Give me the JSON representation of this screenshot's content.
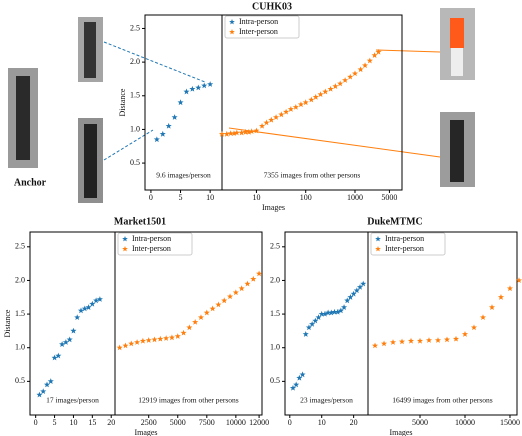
{
  "chart_data": [
    {
      "type": "scatter",
      "title": "CUHK03",
      "ylabel": "Distance",
      "xlabel": "Images",
      "ylim": [
        0.1,
        2.7
      ],
      "yticks": [
        {
          "value": 0.5,
          "label": "0.5"
        },
        {
          "value": 1,
          "label": "1.0"
        },
        {
          "value": 1.5,
          "label": "1.5"
        },
        {
          "value": 2,
          "label": "2.0"
        },
        {
          "value": 2.5,
          "label": "2.5"
        }
      ],
      "panels": [
        {
          "xlim": [
            -1,
            12
          ],
          "xticks": [
            0,
            5,
            10
          ],
          "annotation": "9.6 images/person"
        },
        {
          "xlim": [
            2,
            9000
          ],
          "log": true,
          "xticks": [
            10,
            100,
            1000,
            5000
          ],
          "annotation": "7355 images from other persons"
        }
      ],
      "legend": "upper left",
      "series": [
        {
          "name": "Intra-person",
          "color": "#1f77b4",
          "x": [
            1,
            2,
            3,
            4,
            5,
            6,
            7,
            8,
            9,
            10
          ],
          "values": [
            0.85,
            0.93,
            1.05,
            1.18,
            1.4,
            1.56,
            1.6,
            1.62,
            1.65,
            1.67
          ]
        },
        {
          "name": "Inter-person",
          "color": "#ff7f0e",
          "x": [
            2,
            2.5,
            3,
            3.5,
            4,
            5,
            6,
            7,
            8,
            10,
            13,
            16,
            20,
            25,
            32,
            40,
            50,
            63,
            80,
            100,
            130,
            160,
            200,
            250,
            320,
            400,
            500,
            630,
            800,
            1000,
            1300,
            1600,
            2000,
            2500,
            3000
          ],
          "values": [
            0.93,
            0.93,
            0.94,
            0.94,
            0.95,
            0.95,
            0.96,
            0.96,
            0.97,
            0.98,
            1.05,
            1.1,
            1.14,
            1.18,
            1.22,
            1.26,
            1.3,
            1.33,
            1.37,
            1.4,
            1.44,
            1.48,
            1.52,
            1.56,
            1.6,
            1.64,
            1.68,
            1.73,
            1.78,
            1.83,
            1.89,
            1.95,
            2.02,
            2.1,
            2.15
          ]
        }
      ]
    },
    {
      "type": "scatter",
      "title": "Market1501",
      "ylabel": "Distance",
      "xlabel": "Images",
      "ylim": [
        0,
        2.72
      ],
      "yticks": [
        {
          "value": 0.5,
          "label": "0.5"
        },
        {
          "value": 1,
          "label": "1.0"
        },
        {
          "value": 1.5,
          "label": "1.5"
        },
        {
          "value": 2,
          "label": "2.0"
        },
        {
          "value": 2.5,
          "label": "2.5"
        }
      ],
      "panels": [
        {
          "xlim": [
            -1.5,
            21
          ],
          "xticks": [
            0,
            5,
            10,
            15,
            20
          ],
          "annotation": "17 images/person"
        },
        {
          "xlim": [
            -400,
            12250
          ],
          "xticks": [
            2500,
            5000,
            7500,
            10000,
            12000
          ],
          "annotation": "12919 images from other persons"
        }
      ],
      "legend": "upper left",
      "series": [
        {
          "name": "Intra-person",
          "color": "#1f77b4",
          "x": [
            1,
            2,
            3,
            4,
            5,
            6,
            7,
            8,
            9,
            10,
            11,
            12,
            13,
            14,
            15,
            16,
            17
          ],
          "values": [
            0.3,
            0.35,
            0.45,
            0.5,
            0.85,
            0.88,
            1.05,
            1.08,
            1.12,
            1.25,
            1.45,
            1.55,
            1.58,
            1.6,
            1.65,
            1.7,
            1.72
          ]
        },
        {
          "name": "Inter-person",
          "color": "#ff7f0e",
          "x": [
            0,
            500,
            1000,
            1500,
            2000,
            2500,
            3000,
            3500,
            4000,
            4500,
            5000,
            5500,
            6000,
            6500,
            7000,
            7500,
            8000,
            8500,
            9000,
            9500,
            10000,
            10500,
            11000,
            11500,
            12000
          ],
          "values": [
            1.0,
            1.03,
            1.06,
            1.08,
            1.1,
            1.11,
            1.12,
            1.13,
            1.14,
            1.15,
            1.17,
            1.22,
            1.3,
            1.38,
            1.45,
            1.52,
            1.58,
            1.64,
            1.7,
            1.76,
            1.82,
            1.88,
            1.95,
            2.02,
            2.1
          ]
        }
      ]
    },
    {
      "type": "scatter",
      "title": "DukeMTMC",
      "xlabel": "Images",
      "ylim": [
        0,
        2.72
      ],
      "yticks": [
        {
          "value": 0.5,
          "label": "0.5"
        },
        {
          "value": 1,
          "label": "1.0"
        },
        {
          "value": 1.5,
          "label": "1.5"
        },
        {
          "value": 2,
          "label": "2.0"
        },
        {
          "value": 2.5,
          "label": "2.5"
        }
      ],
      "panels": [
        {
          "xlim": [
            -1.5,
            24.5
          ],
          "xticks": [
            0,
            10,
            20
          ],
          "annotation": "23 images/person"
        },
        {
          "xlim": [
            -780,
            15780
          ],
          "xticks": [
            5000,
            10000,
            15000
          ],
          "annotation": "16499 images from other persons"
        }
      ],
      "legend": "upper left",
      "series": [
        {
          "name": "Intra-person",
          "color": "#1f77b4",
          "x": [
            1,
            2,
            3,
            4,
            5,
            6,
            7,
            8,
            9,
            10,
            11,
            12,
            13,
            14,
            15,
            16,
            17,
            18,
            19,
            20,
            21,
            22,
            23
          ],
          "values": [
            0.4,
            0.45,
            0.55,
            0.6,
            1.2,
            1.3,
            1.35,
            1.4,
            1.45,
            1.5,
            1.5,
            1.52,
            1.52,
            1.53,
            1.53,
            1.55,
            1.6,
            1.7,
            1.75,
            1.8,
            1.85,
            1.9,
            1.95
          ]
        },
        {
          "name": "Inter-person",
          "color": "#ff7f0e",
          "x": [
            0,
            1000,
            2000,
            3000,
            4000,
            5000,
            6000,
            7000,
            8000,
            9000,
            10000,
            11000,
            12000,
            13000,
            14000,
            15000,
            16000
          ],
          "values": [
            1.03,
            1.06,
            1.08,
            1.09,
            1.1,
            1.1,
            1.11,
            1.11,
            1.12,
            1.13,
            1.2,
            1.3,
            1.45,
            1.6,
            1.75,
            1.88,
            2.0
          ]
        }
      ]
    }
  ],
  "anchor_label": "Anchor"
}
